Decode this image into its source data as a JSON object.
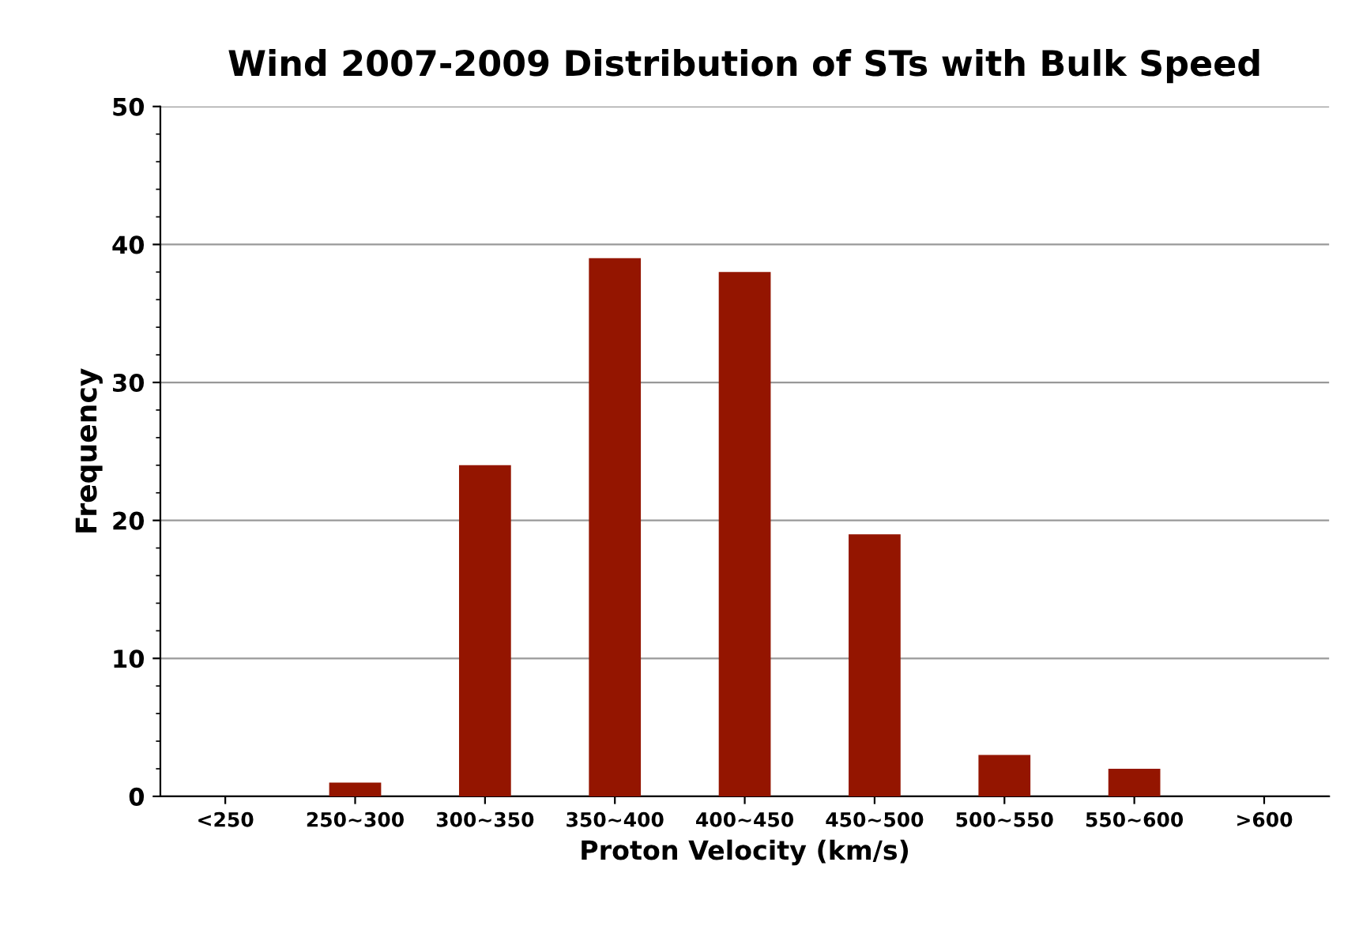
{
  "chart_data": {
    "type": "bar",
    "title": "Wind 2007-2009 Distribution of STs with Bulk Speed",
    "xlabel": "Proton Velocity (km/s)",
    "ylabel": "Frequency",
    "categories": [
      "<250",
      "250~300",
      "300~350",
      "350~400",
      "400~450",
      "450~500",
      "500~550",
      "550~600",
      ">600"
    ],
    "values": [
      0,
      1,
      24,
      39,
      38,
      19,
      3,
      2,
      0
    ],
    "color": "#941500",
    "ylim": [
      0,
      50
    ],
    "yticks": [
      0,
      10,
      20,
      30,
      40,
      50
    ],
    "grid": "y",
    "legend": false
  }
}
